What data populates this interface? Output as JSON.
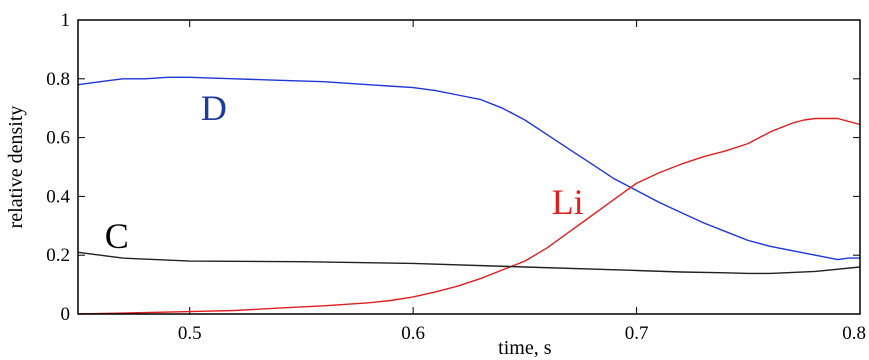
{
  "chart_data": {
    "type": "line",
    "title": "",
    "xlabel": "time, s",
    "ylabel": "relative density",
    "xlim": [
      0.45,
      0.8
    ],
    "ylim": [
      0,
      1
    ],
    "grid": false,
    "legend": "none",
    "x_ticks": [
      "0.5",
      "0.6",
      "0.7",
      "0.8"
    ],
    "y_ticks": [
      "0",
      "0.2",
      "0.4",
      "0.6",
      "0.8",
      "1"
    ],
    "series": [
      {
        "name": "D",
        "color": "#1f35d6",
        "label_color": "#1f3a9c",
        "x": [
          0.45,
          0.46,
          0.47,
          0.48,
          0.49,
          0.5,
          0.52,
          0.54,
          0.56,
          0.58,
          0.6,
          0.61,
          0.62,
          0.63,
          0.64,
          0.65,
          0.66,
          0.67,
          0.68,
          0.69,
          0.7,
          0.71,
          0.72,
          0.73,
          0.74,
          0.75,
          0.76,
          0.77,
          0.78,
          0.79,
          0.795,
          0.8
        ],
        "y": [
          0.78,
          0.79,
          0.8,
          0.8,
          0.805,
          0.805,
          0.8,
          0.795,
          0.79,
          0.78,
          0.77,
          0.76,
          0.745,
          0.73,
          0.7,
          0.66,
          0.61,
          0.56,
          0.51,
          0.46,
          0.42,
          0.38,
          0.345,
          0.31,
          0.28,
          0.25,
          0.23,
          0.215,
          0.2,
          0.185,
          0.19,
          0.19
        ]
      },
      {
        "name": "Li",
        "color": "#e02020",
        "label_color": "#e02020",
        "x": [
          0.45,
          0.47,
          0.5,
          0.52,
          0.54,
          0.56,
          0.58,
          0.59,
          0.6,
          0.61,
          0.62,
          0.63,
          0.64,
          0.65,
          0.66,
          0.67,
          0.68,
          0.69,
          0.7,
          0.71,
          0.72,
          0.73,
          0.74,
          0.75,
          0.76,
          0.77,
          0.775,
          0.78,
          0.79,
          0.8
        ],
        "y": [
          0.0,
          0.003,
          0.008,
          0.012,
          0.02,
          0.028,
          0.038,
          0.046,
          0.058,
          0.075,
          0.095,
          0.12,
          0.15,
          0.18,
          0.225,
          0.28,
          0.335,
          0.39,
          0.445,
          0.48,
          0.51,
          0.535,
          0.555,
          0.58,
          0.62,
          0.65,
          0.66,
          0.665,
          0.665,
          0.645
        ]
      },
      {
        "name": "C",
        "color": "#222222",
        "label_color": "#000000",
        "x": [
          0.45,
          0.47,
          0.5,
          0.55,
          0.6,
          0.65,
          0.7,
          0.72,
          0.74,
          0.75,
          0.76,
          0.78,
          0.8
        ],
        "y": [
          0.21,
          0.19,
          0.18,
          0.178,
          0.172,
          0.16,
          0.148,
          0.143,
          0.14,
          0.138,
          0.138,
          0.145,
          0.16
        ]
      }
    ],
    "annotations": [
      {
        "text": "D",
        "x": 0.505,
        "y": 0.66
      },
      {
        "text": "Li",
        "x": 0.662,
        "y": 0.34
      },
      {
        "text": "C",
        "x": 0.462,
        "y": 0.225
      }
    ]
  }
}
